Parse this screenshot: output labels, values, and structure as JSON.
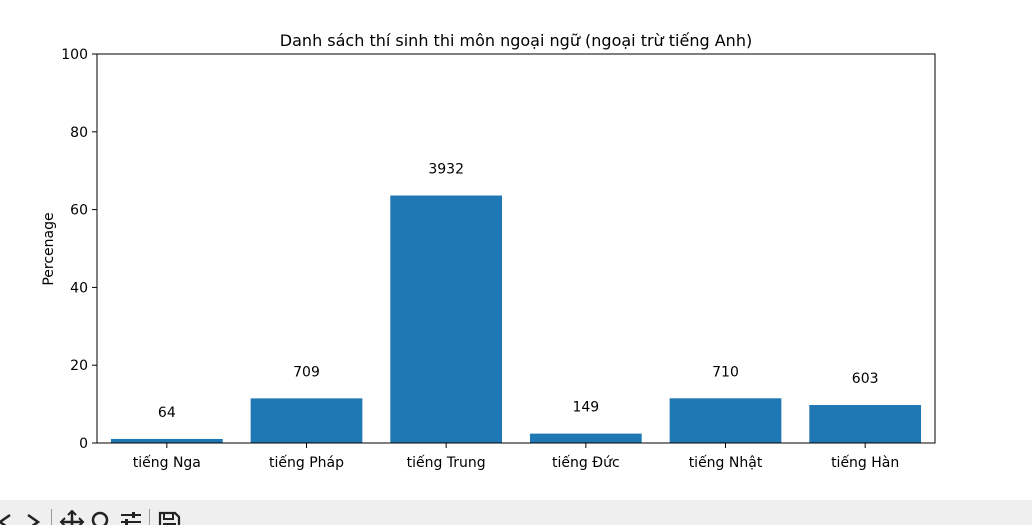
{
  "chart_data": {
    "type": "bar",
    "title": "Danh sách thí sinh thi môn ngoại ngữ (ngoại trừ tiếng Anh)",
    "xlabel": "",
    "ylabel": "Percenage",
    "ylim": [
      0,
      100
    ],
    "yticks": [
      "0",
      "20",
      "40",
      "60",
      "80",
      "100"
    ],
    "categories": [
      "tiếng Nga",
      "tiếng Pháp",
      "tiếng Trung",
      "tiếng Đức",
      "tiếng Nhật",
      "tiếng Hàn"
    ],
    "values": [
      1.04,
      11.47,
      63.62,
      2.41,
      11.49,
      9.76
    ],
    "data_labels": [
      "64",
      "709",
      "3932",
      "149",
      "710",
      "603"
    ],
    "bar_color": "#1f77b4",
    "grid": false
  },
  "toolbar": {
    "buttons": [
      "back-icon",
      "forward-icon",
      "pan-icon",
      "zoom-icon",
      "configure-icon",
      "save-icon"
    ]
  }
}
